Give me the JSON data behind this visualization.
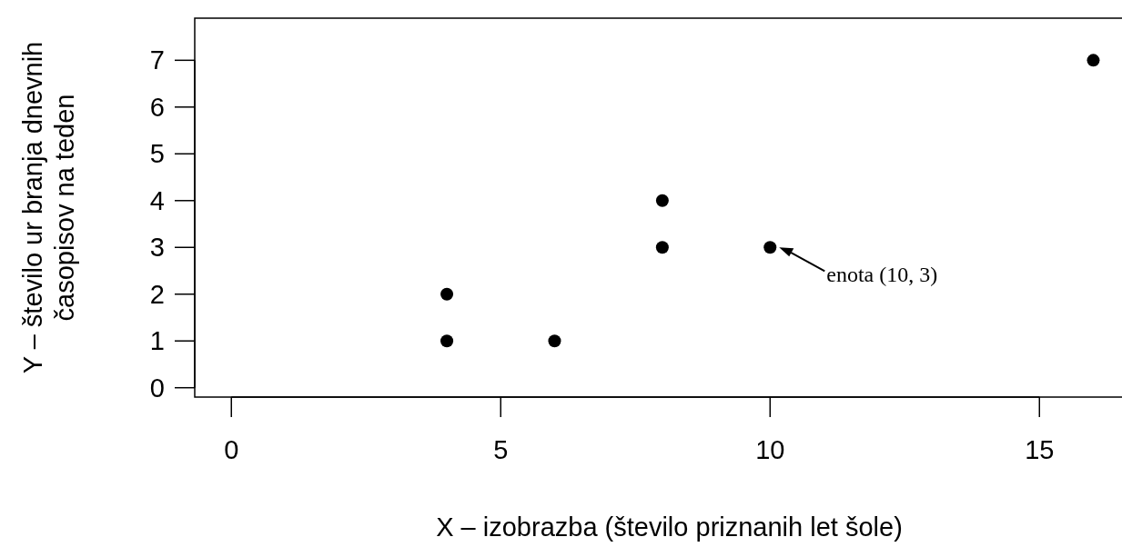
{
  "chart_data": {
    "type": "scatter",
    "xlabel": "X – izobrazba (število priznanih let šole)",
    "ylabel": "Y – število ur branja dnevnih\nčasopisov na teden",
    "x": [
      4,
      4,
      6,
      8,
      8,
      10,
      16
    ],
    "values": [
      2,
      1,
      1,
      4,
      3,
      3,
      7
    ],
    "color": "#000000",
    "marker": "circle",
    "xlim": [
      -0.68,
      16.6
    ],
    "ylim": [
      -0.2,
      7.9
    ],
    "xticks": [
      0,
      5,
      10,
      15
    ],
    "yticks": [
      0,
      1,
      2,
      3,
      4,
      5,
      6,
      7
    ],
    "grid": false,
    "annotations": [
      {
        "text": "enota (10, 3)",
        "x": 10,
        "y": 3
      }
    ]
  }
}
